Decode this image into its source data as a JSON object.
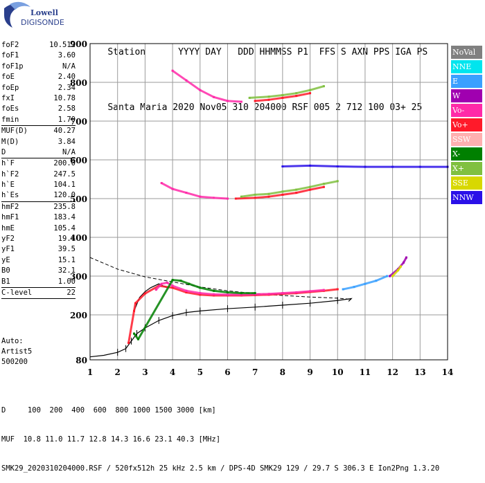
{
  "logo": {
    "line1": "Lowell",
    "line2": "DIGISONDE"
  },
  "header": {
    "labels": [
      "Station",
      "YYYY",
      "DAY",
      "DDD",
      "HHMMSS",
      "P1",
      "FFS",
      "S",
      "AXN",
      "PPS",
      "IGA",
      "PS"
    ],
    "values": [
      "Santa Maria",
      "2020",
      "Nov05",
      "310",
      "204000",
      "RSF",
      "005",
      "2",
      "712",
      "100",
      "03+",
      "25"
    ]
  },
  "params": {
    "group1": [
      {
        "k": "foF2",
        "v": "10.512"
      },
      {
        "k": "foF1",
        "v": "3.60"
      },
      {
        "k": "foF1p",
        "v": "N/A"
      },
      {
        "k": "foE",
        "v": "2.40"
      },
      {
        "k": "foEp",
        "v": "2.34"
      },
      {
        "k": "fxI",
        "v": "10.78"
      },
      {
        "k": "foEs",
        "v": "2.58"
      },
      {
        "k": "fmin",
        "v": "1.70"
      }
    ],
    "group2": [
      {
        "k": "MUF(D)",
        "v": "40.27"
      },
      {
        "k": "M(D)",
        "v": "3.84"
      },
      {
        "k": "D",
        "v": "N/A"
      }
    ],
    "group3": [
      {
        "k": "h`F",
        "v": "200.0"
      },
      {
        "k": "h`F2",
        "v": "247.5"
      },
      {
        "k": "h`E",
        "v": "104.1"
      },
      {
        "k": "h`Es",
        "v": "120.0"
      }
    ],
    "group4": [
      {
        "k": "hmF2",
        "v": "235.8"
      },
      {
        "k": "hmF1",
        "v": "183.4"
      },
      {
        "k": "hmE",
        "v": "105.4"
      },
      {
        "k": "yF2",
        "v": "19.4"
      },
      {
        "k": "yF1",
        "v": "39.5"
      },
      {
        "k": "yE",
        "v": "15.1"
      },
      {
        "k": "B0",
        "v": "32.1"
      },
      {
        "k": "B1",
        "v": "1.00"
      }
    ],
    "group5": [
      {
        "k": "C-level",
        "v": "22"
      }
    ]
  },
  "autotext": [
    "Auto:",
    "Artist5",
    "500200"
  ],
  "legend": [
    {
      "label": "NoVal",
      "color": "#808080"
    },
    {
      "label": "NNE",
      "color": "#00e5ee"
    },
    {
      "label": "E",
      "color": "#3aa0ff"
    },
    {
      "label": "W",
      "color": "#a000b0"
    },
    {
      "label": "Vo-",
      "color": "#ff2aa8"
    },
    {
      "label": "Vo+",
      "color": "#ff1a2a"
    },
    {
      "label": "SSW",
      "color": "#ffb0b0"
    },
    {
      "label": "X-",
      "color": "#008000"
    },
    {
      "label": "X+",
      "color": "#80c040"
    },
    {
      "label": "SSE",
      "color": "#d8d800"
    },
    {
      "label": "NNW",
      "color": "#2a10e8"
    }
  ],
  "footer": {
    "line1": "D     100  200  400  600  800 1000 1500 3000 [km]",
    "line2": "MUF  10.8 11.0 11.7 12.8 14.3 16.6 23.1 40.3 [MHz]",
    "line3": "SMK29_2020310204000.RSF / 520fx512h 25 kHz 2.5 km / DPS-4D SMK29 129 / 29.7 S 306.3 E Ion2Png 1.3.20"
  },
  "chart_data": {
    "type": "scatter",
    "xlim": [
      1,
      14
    ],
    "ylim": [
      80,
      900
    ],
    "xlabel": "",
    "ylabel": "",
    "x_ticks": [
      1,
      2,
      3,
      4,
      5,
      6,
      7,
      8,
      9,
      10,
      11,
      12,
      13,
      14
    ],
    "y_ticks": [
      80,
      200,
      300,
      400,
      500,
      600,
      700,
      800,
      900
    ],
    "grid": true,
    "series": [
      {
        "name": "Vo+",
        "color": "#ff1a2a",
        "x": [
          2.4,
          2.6,
          2.65,
          3.0,
          3.5,
          4.0,
          4.5,
          5.0,
          5.5,
          6.0,
          6.5,
          7.0,
          7.5,
          8.0,
          8.5,
          9.0,
          9.5,
          10.0
        ],
        "y": [
          125,
          210,
          230,
          255,
          275,
          270,
          258,
          252,
          250,
          250,
          250,
          251,
          252,
          254,
          256,
          259,
          262,
          266
        ]
      },
      {
        "name": "Vo-",
        "color": "#ff2aa8",
        "x": [
          3.4,
          3.6,
          3.8,
          4.0,
          4.5,
          5.0,
          5.5,
          6.0,
          6.5,
          7.0,
          7.5,
          8.0,
          8.5,
          9.0,
          9.5
        ],
        "y": [
          265,
          280,
          283,
          275,
          262,
          256,
          253,
          252,
          252,
          253,
          254,
          256,
          258,
          261,
          264
        ]
      },
      {
        "name": "X-",
        "color": "#008000",
        "x": [
          2.6,
          2.75,
          4.0,
          4.3,
          4.6,
          5.0,
          5.5,
          6.0,
          6.5,
          7.0
        ],
        "y": [
          150,
          135,
          290,
          288,
          280,
          270,
          262,
          258,
          256,
          256
        ]
      },
      {
        "name": "E",
        "color": "#3aa0ff",
        "x": [
          10.2,
          10.6,
          11.0,
          11.4,
          11.8
        ],
        "y": [
          266,
          272,
          280,
          288,
          300
        ]
      },
      {
        "name": "W",
        "color": "#a000b0",
        "x": [
          11.9,
          12.2,
          12.4,
          12.5
        ],
        "y": [
          300,
          318,
          335,
          348
        ]
      },
      {
        "name": "SSE",
        "color": "#d8d800",
        "x": [
          12.0,
          12.2,
          12.3
        ],
        "y": [
          300,
          315,
          325
        ]
      },
      {
        "name": "Vo+ (2F)",
        "color": "#ff1a2a",
        "x": [
          6.3,
          7.0,
          7.5,
          8.0,
          8.5,
          9.0,
          9.5
        ],
        "y": [
          500,
          502,
          505,
          510,
          515,
          523,
          530
        ]
      },
      {
        "name": "Vo- (2F)",
        "color": "#ff2aa8",
        "x": [
          3.6,
          4.0,
          4.5,
          5.0,
          5.5,
          6.0
        ],
        "y": [
          540,
          525,
          515,
          505,
          502,
          500
        ]
      },
      {
        "name": "X+ (2F)",
        "color": "#80c040",
        "x": [
          6.5,
          7.0,
          7.5,
          8.0,
          8.5,
          9.0,
          9.5,
          10.0
        ],
        "y": [
          505,
          510,
          512,
          518,
          523,
          530,
          538,
          545
        ]
      },
      {
        "name": "NNW (2F)",
        "color": "#2a10e8",
        "x": [
          8.0,
          9.0,
          10.0,
          11.0,
          12.0,
          13.0,
          14.0
        ],
        "y": [
          583,
          585,
          583,
          582,
          582,
          582,
          582
        ]
      },
      {
        "name": "Vo+ (3F)",
        "color": "#ff1a2a",
        "x": [
          7.0,
          7.5,
          8.0,
          8.5,
          9.0
        ],
        "y": [
          752,
          755,
          760,
          765,
          772
        ]
      },
      {
        "name": "Vo- (3F)",
        "color": "#ff2aa8",
        "x": [
          4.0,
          4.5,
          5.0,
          5.5,
          6.0,
          6.5
        ],
        "y": [
          830,
          805,
          780,
          762,
          752,
          750
        ]
      },
      {
        "name": "X+ (3F)",
        "color": "#80c040",
        "x": [
          6.8,
          7.5,
          8.0,
          8.5,
          9.0,
          9.5
        ],
        "y": [
          760,
          763,
          767,
          772,
          780,
          790
        ]
      }
    ],
    "profile_curve": {
      "x": [
        1.0,
        1.5,
        2.0,
        2.3,
        2.5,
        2.7,
        3.0,
        3.5,
        4.0,
        4.5,
        5.0,
        6.0,
        7.0,
        8.0,
        9.0,
        10.0,
        10.5,
        10.4
      ],
      "y": [
        88,
        92,
        100,
        110,
        130,
        150,
        165,
        185,
        198,
        206,
        210,
        216,
        220,
        225,
        230,
        237,
        242,
        235
      ]
    },
    "trace_curve": {
      "x": [
        2.6,
        2.8,
        3.0,
        3.2,
        3.5,
        3.8
      ],
      "y": [
        210,
        245,
        260,
        270,
        280,
        270
      ]
    },
    "muf_dashed_curve": {
      "x": [
        1.0,
        2.0,
        3.0,
        4.0,
        5.0,
        6.0,
        7.0,
        8.0,
        9.0,
        10.0,
        10.5
      ],
      "y": [
        348,
        318,
        298,
        285,
        272,
        262,
        255,
        250,
        246,
        243,
        240
      ]
    }
  }
}
